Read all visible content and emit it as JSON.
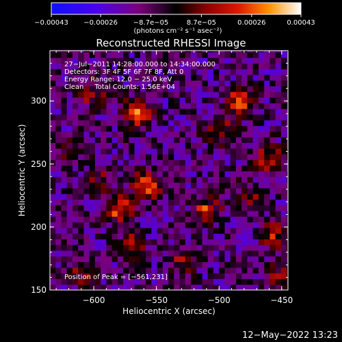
{
  "chart_data": {
    "type": "heatmap",
    "title": "Reconstructed RHESSI Image",
    "xlabel": "Heliocentric X (arcsec)",
    "ylabel": "Heliocentric Y (arcsec)",
    "xlim": [
      -635,
      -445
    ],
    "ylim": [
      150,
      340
    ],
    "xticks": [
      -600,
      -550,
      -500,
      -450
    ],
    "yticks": [
      150,
      200,
      250,
      300
    ],
    "xtick_labels": [
      "−600",
      "−550",
      "−500",
      "−450"
    ],
    "ytick_labels": [
      "150",
      "200",
      "250",
      "300"
    ],
    "colorbar": {
      "ticks": [
        -0.00043,
        -0.00026,
        -8.7e-05,
        8.7e-05,
        0.00026,
        0.00043
      ],
      "tick_labels": [
        "−0.00043",
        "−0.00026",
        "−8.7e−05",
        "8.7e−05",
        "0.00026",
        "0.00043"
      ],
      "units": "(photons cm⁻² s⁻¹ asec⁻²)",
      "range": [
        -0.00043,
        0.00043
      ]
    },
    "annotations": {
      "time_range": "27−Jul−2011 14:28:00.000 to 14:34:00.000",
      "detectors": "Detectors: 3F 4F 5F 6F 7F 8F, Att 0",
      "energy_range": "Energy Range: 12.0 − 25.0 keV",
      "clean_counts": "Clean     Total Counts: 1.56E+04",
      "peak_position": "Position of Peak = [−561,231]"
    },
    "sources": [
      {
        "x": -565,
        "y": 290,
        "peak": 0.00043
      },
      {
        "x": -482,
        "y": 300,
        "peak": 0.0004
      },
      {
        "x": -557,
        "y": 233,
        "peak": 0.00041
      },
      {
        "x": -580,
        "y": 215,
        "peak": 0.00036
      },
      {
        "x": -510,
        "y": 213,
        "peak": 0.00032
      },
      {
        "x": -460,
        "y": 255,
        "peak": 0.00028
      },
      {
        "x": -455,
        "y": 193,
        "peak": 0.00026
      },
      {
        "x": -500,
        "y": 277,
        "peak": 0.00024
      },
      {
        "x": -570,
        "y": 185,
        "peak": 0.00026
      },
      {
        "x": -600,
        "y": 305,
        "peak": 0.00022
      },
      {
        "x": -530,
        "y": 172,
        "peak": 0.0002
      },
      {
        "x": -452,
        "y": 160,
        "peak": 0.00022
      },
      {
        "x": -608,
        "y": 165,
        "peak": 0.0002
      },
      {
        "x": -618,
        "y": 260,
        "peak": 0.00016
      },
      {
        "x": -475,
        "y": 225,
        "peak": 0.00018
      },
      {
        "x": -595,
        "y": 238,
        "peak": 0.00015
      }
    ]
  },
  "footer": {
    "date": "12−May−2022 13:23"
  }
}
